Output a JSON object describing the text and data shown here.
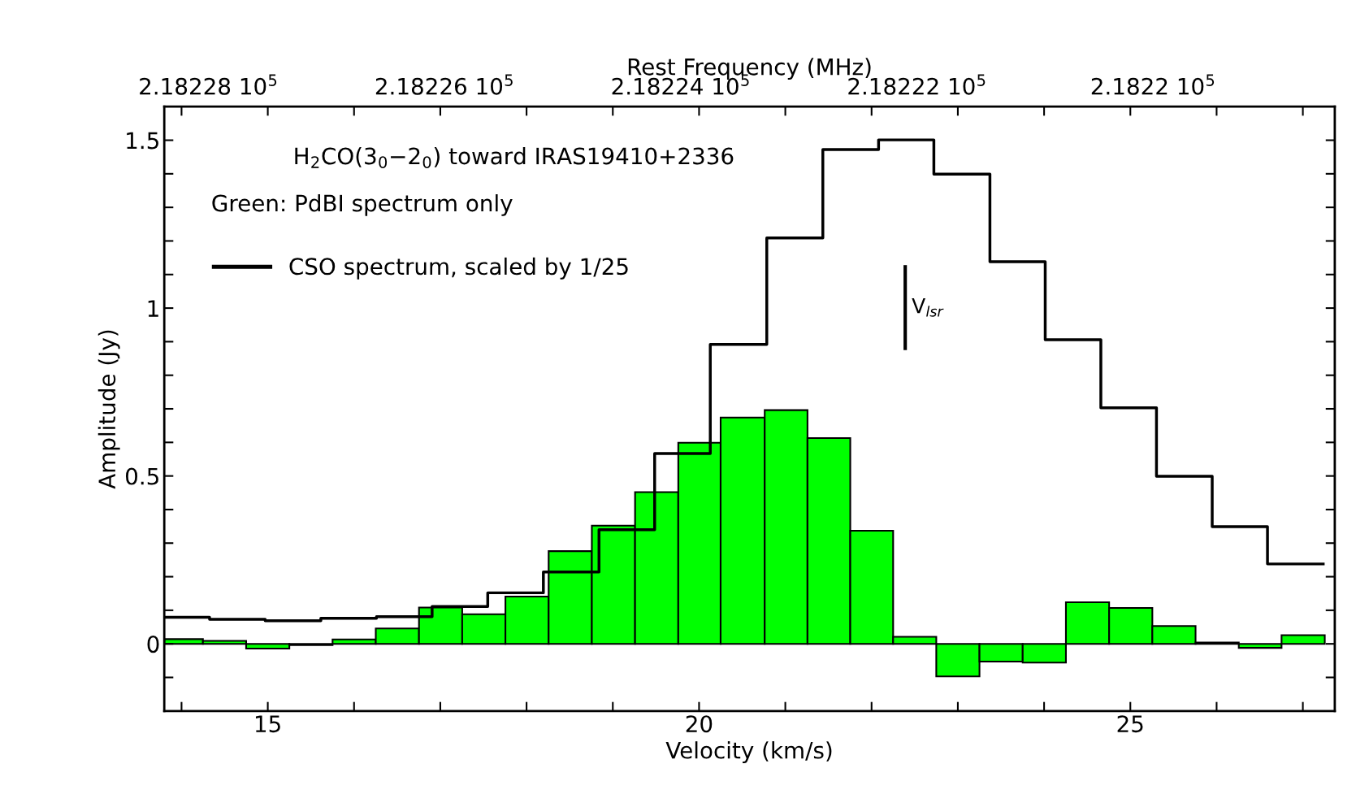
{
  "chart_data": {
    "type": "histogram",
    "xlabel": "Velocity (km/s)",
    "ylabel": "Amplitude (Jy)",
    "x2label": "Rest Frequency (MHz)",
    "xlim": [
      13.8,
      27.37
    ],
    "ylim": [
      -0.2,
      1.6
    ],
    "xticks": [
      {
        "value": 14,
        "label": null
      },
      15,
      {
        "value": 16,
        "label": null
      },
      {
        "value": 17,
        "label": null
      },
      {
        "value": 18,
        "label": null
      },
      {
        "value": 19,
        "label": null
      },
      20,
      {
        "value": 21,
        "label": null
      },
      {
        "value": 22,
        "label": null
      },
      {
        "value": 23,
        "label": null
      },
      {
        "value": 24,
        "label": null
      },
      25,
      {
        "value": 26,
        "label": null
      },
      {
        "value": 27,
        "label": null
      }
    ],
    "yticks": [
      {
        "value": -0.1,
        "label": null
      },
      0,
      {
        "value": 0.1,
        "label": null
      },
      {
        "value": 0.2,
        "label": null
      },
      {
        "value": 0.3,
        "label": null
      },
      {
        "value": 0.4,
        "label": null
      },
      0.5,
      {
        "value": 0.6,
        "label": null
      },
      {
        "value": 0.7,
        "label": null
      },
      {
        "value": 0.8,
        "label": null
      },
      {
        "value": 0.9,
        "label": null
      },
      1,
      {
        "value": 1.1,
        "label": null
      },
      {
        "value": 1.2,
        "label": null
      },
      {
        "value": 1.3,
        "label": null
      },
      {
        "value": 1.4,
        "label": null
      },
      1.5
    ],
    "grid": false,
    "legend": "top left",
    "series": [
      {
        "color": "#00ff00",
        "bins": [
          13.8,
          14.248,
          14.749,
          15.25,
          15.751,
          16.252,
          16.753,
          17.254,
          17.755,
          18.256,
          18.757,
          19.258,
          19.759,
          20.25,
          20.761,
          21.257,
          21.753,
          22.25,
          22.75,
          23.251,
          23.752,
          24.253,
          24.754,
          25.255,
          25.756,
          26.257,
          26.753,
          27.254
        ],
        "values": [
          0.014,
          0.009,
          -0.014,
          -0.004,
          0.013,
          0.046,
          0.108,
          0.088,
          0.141,
          0.276,
          0.352,
          0.452,
          0.599,
          0.674,
          0.696,
          0.613,
          0.337,
          0.021,
          -0.097,
          -0.053,
          -0.056,
          0.124,
          0.107,
          0.053,
          0.004,
          -0.012,
          0.026
        ]
      },
      {
        "type": "step",
        "name": "CSO spectrum, scaled by 1/25",
        "color": "#000000",
        "x": [
          13.8,
          14.325,
          14.97,
          15.615,
          16.26,
          16.905,
          17.55,
          18.195,
          18.84,
          19.485,
          20.13,
          20.785,
          21.435,
          22.081,
          22.722,
          23.372,
          24.013,
          24.658,
          25.303,
          25.949,
          26.59,
          27.236
        ],
        "values": [
          0.079,
          0.073,
          0.069,
          0.076,
          0.081,
          0.111,
          0.152,
          0.214,
          0.34,
          0.567,
          0.892,
          1.209,
          1.472,
          1.501,
          1.399,
          1.138,
          0.906,
          0.703,
          0.499,
          0.349,
          0.238,
          0.238
        ]
      }
    ],
    "ref_lines": [
      {
        "axis": "x",
        "value": 22.39,
        "label": "V$_{lsr}$"
      }
    ],
    "annotations": [
      "H$_{2}$CO(3$_{0}$−2$_{0}$) toward IRAS19410+2336",
      "Green: PdBI spectrum only",
      "2.18228 10$^{5}$",
      "2.18226 10$^{5}$",
      "2.18224 10$^{5}$",
      "2.18222 10$^{5}$",
      "2.1822 10$^{5}$"
    ]
  }
}
